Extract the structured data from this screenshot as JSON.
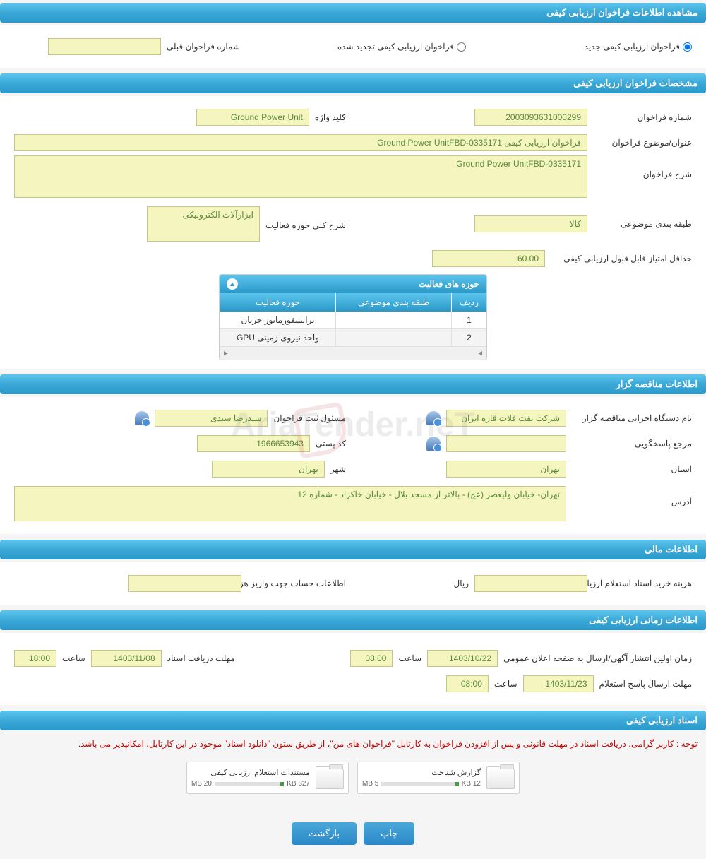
{
  "colors": {
    "header_gradient_top": "#5bc5ed",
    "header_gradient_bottom": "#2a98c8",
    "field_bg": "#f5f5c0",
    "field_border": "#c5c58a",
    "field_text": "#5a8a3a",
    "notice_text": "#c00000",
    "button_bg": "#3a98d0"
  },
  "section1": {
    "title": "مشاهده اطلاعات فراخوان ارزیابی کیفی",
    "radio_new": "فراخوان ارزیابی کیفی جدید",
    "radio_renewed": "فراخوان ارزیابی کیفی تجدید شده",
    "prev_number_label": "شماره فراخوان قبلی"
  },
  "section2": {
    "title": "مشخصات فراخوان ارزیابی کیفی",
    "number_label": "شماره فراخوان",
    "number_value": "2003093631000299",
    "keyword_label": "کلید واژه",
    "keyword_value": "Ground Power Unit",
    "subject_label": "عنوان/موضوع فراخوان",
    "subject_value": "فراخوان ارزیابی کیفی Ground Power UnitFBD-0335171",
    "desc_label": "شرح فراخوان",
    "desc_value": "Ground Power UnitFBD-0335171",
    "category_label": "طبقه بندی موضوعی",
    "category_value": "کالا",
    "scope_desc_label": "شرح کلی حوزه فعالیت",
    "scope_desc_value": "ابزارآلات الکترونیکی",
    "min_score_label": "حداقل امتیاز قابل قبول ارزیابی کیفی",
    "min_score_value": "60.00",
    "activity_table": {
      "title": "حوزه های فعالیت",
      "col_row": "ردیف",
      "col_category": "طبقه بندی موضوعی",
      "col_activity": "حوزه فعالیت",
      "rows": [
        {
          "n": "1",
          "cat": "",
          "act": "ترانسفورماتور جریان"
        },
        {
          "n": "2",
          "cat": "",
          "act": "واحد نیروی زمینی GPU"
        }
      ]
    }
  },
  "section3": {
    "title": "اطلاعات مناقصه گزار",
    "org_label": "نام دستگاه اجرایی مناقصه گزار",
    "org_value": "شرکت نفت فلات قاره ایران",
    "registrar_label": "مسئول ثبت فراخوان",
    "registrar_value": "سیدرضا سیدی",
    "responsible_label": "مرجع پاسخگویی",
    "responsible_value": "",
    "postal_label": "کد پستی",
    "postal_value": "1966653943",
    "province_label": "استان",
    "province_value": "تهران",
    "city_label": "شهر",
    "city_value": "تهران",
    "address_label": "آدرس",
    "address_value": "تهران- خیابان ولیعصر (عج) - بالاتر از مسجد بلال - خیابان خاکزاد - شماره 12"
  },
  "section4": {
    "title": "اطلاعات مالی",
    "cost_label": "هزینه خرید اسناد استعلام ارزیابی کیفی",
    "cost_unit": "ریال",
    "account_label": "اطلاعات حساب جهت واریز هزینه خرید اسناد"
  },
  "section5": {
    "title": "اطلاعات زمانی ارزیابی کیفی",
    "publish_label": "زمان اولین انتشار آگهی/ارسال به صفحه اعلان عمومی",
    "publish_date": "1403/10/22",
    "publish_time_label": "ساعت",
    "publish_time": "08:00",
    "deadline_label": "مهلت دریافت اسناد",
    "deadline_date": "1403/11/08",
    "deadline_time_label": "ساعت",
    "deadline_time": "18:00",
    "response_label": "مهلت ارسال پاسخ استعلام",
    "response_date": "1403/11/23",
    "response_time_label": "ساعت",
    "response_time": "08:00"
  },
  "section6": {
    "title": "اسناد ارزیابی کیفی",
    "notice": "توجه : کاربر گرامی، دریافت اسناد در مهلت قانونی و پس از افزودن فراخوان به کارتابل \"فراخوان های من\"، از طریق ستون \"دانلود اسناد\" موجود در این کارتابل، امکانپذیر می باشد.",
    "files": [
      {
        "title": "گزارش شناخت",
        "size": "12 KB",
        "total": "5 MB"
      },
      {
        "title": "مستندات استعلام ارزیابی کیفی",
        "size": "827 KB",
        "total": "20 MB"
      }
    ]
  },
  "buttons": {
    "print": "چاپ",
    "back": "بازگشت"
  },
  "watermark": "AriaTender.neT"
}
